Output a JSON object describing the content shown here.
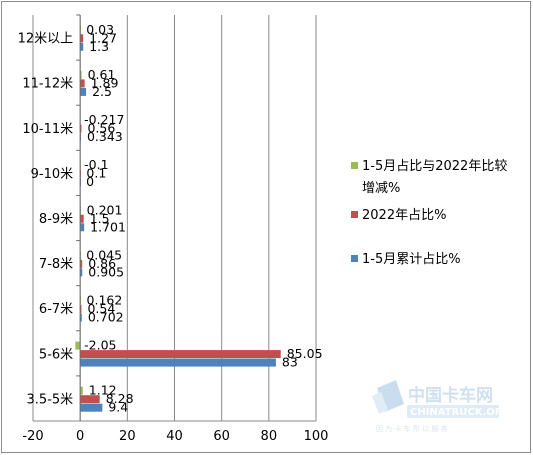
{
  "chart_data": {
    "type": "bar",
    "orientation": "horizontal",
    "categories": [
      "3.5-5米",
      "5-6米",
      "6-7米",
      "7-8米",
      "8-9米",
      "9-10米",
      "10-11米",
      "11-12米",
      "12米以上"
    ],
    "series": [
      {
        "name": "1-5月累计占比%",
        "color": "#4f81bd",
        "values": [
          9.4,
          83,
          0.702,
          0.905,
          1.701,
          0,
          0.343,
          2.5,
          1.3
        ]
      },
      {
        "name": "2022年占比%",
        "color": "#c0504d",
        "values": [
          8.28,
          85.05,
          0.54,
          0.86,
          1.5,
          0.1,
          0.56,
          1.89,
          1.27
        ]
      },
      {
        "name": "1-5月占比与2022年比较增减%",
        "color": "#9bbb59",
        "values": [
          1.12,
          -2.05,
          0.162,
          0.045,
          0.201,
          -0.1,
          -0.217,
          0.61,
          0.03
        ]
      }
    ],
    "data_labels": [
      [
        "9.4",
        "83",
        "0.702",
        "0.905",
        "1.701",
        "0",
        "0.343",
        "2.5",
        "1.3"
      ],
      [
        "8.28",
        "85.05",
        "0.54",
        "0.86",
        "1.5",
        "0.1",
        "0.56",
        "1.89",
        "1.27"
      ],
      [
        "1.12",
        "-2.05",
        "0.162",
        "0.045",
        "0.201",
        "-0.1",
        "-0.217",
        "0.61",
        "0.03"
      ]
    ],
    "xlim": [
      -20,
      100
    ],
    "xticks": [
      "-20",
      "0",
      "20",
      "40",
      "60",
      "80",
      "100"
    ],
    "grid": "vertical",
    "legend": {
      "placement": "right",
      "entries": [
        {
          "lines": [
            "1-5月占比与2022年比较",
            "增减%"
          ],
          "color": "#9bbb59"
        },
        {
          "lines": [
            "2022年占比%"
          ],
          "color": "#c0504d"
        },
        {
          "lines": [
            "1-5月累计占比%"
          ],
          "color": "#4f81bd"
        }
      ]
    }
  },
  "watermark": {
    "title": "中国卡车网",
    "site": "CHINATRUCK.ORG",
    "slogan": "因 为 卡 车 所 以 服 务"
  }
}
